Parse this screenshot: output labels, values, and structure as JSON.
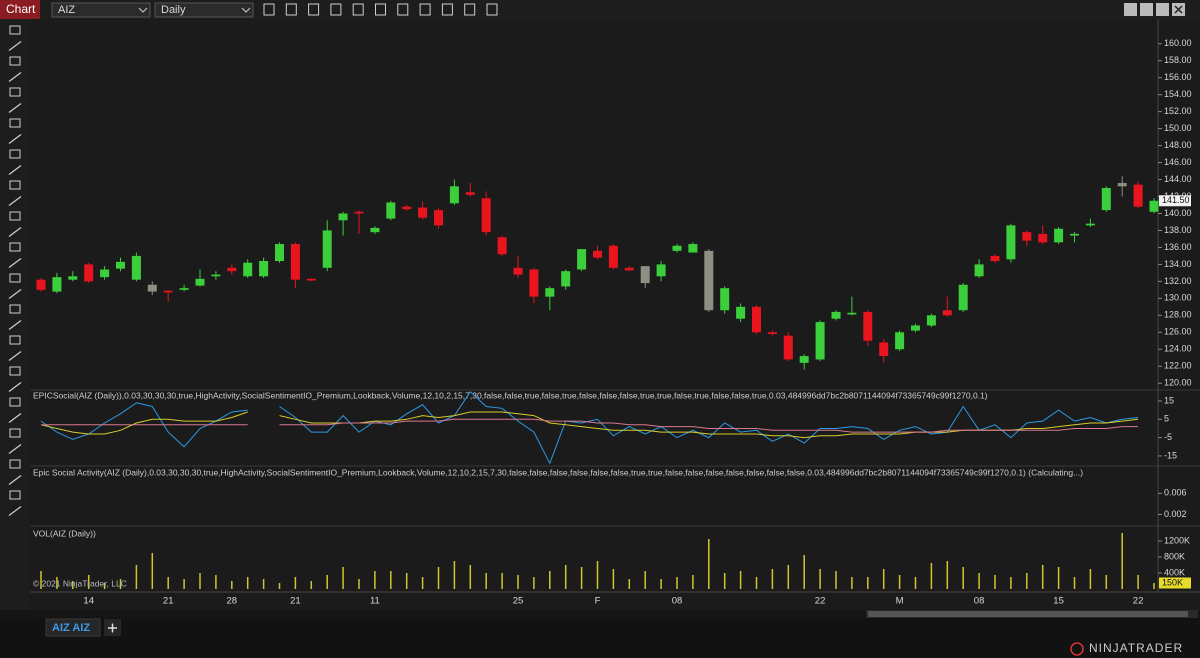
{
  "toolbar": {
    "title": "Chart",
    "instrument": "AIZ",
    "period": "Daily"
  },
  "chart_data": [
    {
      "type": "candlestick",
      "open": [
        132.2,
        130.8,
        132.2,
        134,
        132.5,
        133.5,
        132.2,
        131.6,
        130.9,
        131,
        131.5,
        132.6,
        133.6,
        132.6,
        132.6,
        134.4,
        136.4,
        132.3,
        133.6,
        139.2,
        140.2,
        137.8,
        139.4,
        140.8,
        140.7,
        140.4,
        141.2,
        142.5,
        141.8,
        137.2,
        133.6,
        133.4,
        130.2,
        131.4,
        133.4,
        135.6,
        136.2,
        133.6,
        133.8,
        132.6,
        135.6,
        135.4,
        135.6,
        128.6,
        127.6,
        129,
        126,
        125.6,
        122.4,
        122.8,
        127.6,
        128.1,
        128.4,
        124.8,
        124,
        126.2,
        126.8,
        128.6,
        128.6,
        132.6,
        135,
        134.6,
        137.8,
        137.6,
        136.6,
        137.4,
        138.6,
        140.4,
        143.6,
        143.4,
        140.2
      ],
      "high": [
        132.4,
        133,
        133.2,
        134.2,
        133.8,
        134.8,
        135.4,
        132,
        131,
        131.6,
        133.4,
        133.2,
        134,
        134.6,
        134.8,
        136.6,
        136.6,
        132.4,
        139.2,
        140.2,
        140.4,
        138.5,
        141.5,
        141,
        141.4,
        140.6,
        144,
        143.6,
        142.6,
        137.4,
        135,
        133.6,
        131.4,
        133.4,
        135.8,
        136.2,
        136.4,
        133.8,
        133.8,
        134.4,
        136.4,
        136.6,
        135.8,
        131.4,
        129.4,
        129.2,
        126.2,
        126,
        123.4,
        127.4,
        128.6,
        130.2,
        128.6,
        125.2,
        126.2,
        127,
        128.2,
        130.2,
        131.8,
        134.6,
        135.2,
        138.8,
        138,
        138.6,
        138.4,
        137.8,
        139.4,
        143.2,
        144.4,
        143.8,
        141.8
      ],
      "low": [
        130.8,
        130.6,
        132,
        131.8,
        132.2,
        133.2,
        132,
        130.4,
        129.6,
        130.8,
        131.4,
        132.2,
        132.8,
        132.4,
        132.4,
        134.2,
        131.2,
        132,
        133.2,
        137.4,
        137.6,
        137.6,
        139.2,
        140.3,
        139.3,
        138.2,
        141,
        142,
        137.4,
        135,
        132.4,
        129.4,
        128.6,
        131,
        133.2,
        134.6,
        133.4,
        133.2,
        131.2,
        132,
        135.4,
        135.4,
        128.4,
        128.2,
        127.2,
        125.8,
        125.6,
        122.6,
        121.6,
        122.6,
        127.4,
        128,
        124.4,
        122.4,
        123.8,
        126,
        126.6,
        127.8,
        128.4,
        132.4,
        134.2,
        134.2,
        136.2,
        136.4,
        136.4,
        136.6,
        138.4,
        140.2,
        142,
        140.6,
        140
      ],
      "close": [
        131,
        132.5,
        132.6,
        132,
        133.4,
        134.3,
        135,
        130.8,
        130.7,
        131.2,
        132.3,
        132.8,
        133.2,
        134.2,
        134.4,
        136.4,
        132.2,
        132.1,
        138,
        140,
        140,
        138.3,
        141.3,
        140.5,
        139.5,
        138.6,
        143.2,
        142.2,
        137.8,
        135.2,
        132.8,
        130.2,
        131.2,
        133.2,
        135.8,
        134.8,
        133.6,
        133.3,
        131.8,
        134,
        136.2,
        136.4,
        128.6,
        131.2,
        129,
        126,
        125.8,
        122.8,
        123.2,
        127.2,
        128.4,
        128.3,
        125,
        123.2,
        126,
        126.8,
        128,
        128,
        131.6,
        134,
        134.4,
        138.6,
        136.8,
        136.6,
        138.2,
        137.6,
        138.8,
        143,
        143.2,
        140.8,
        141.5
      ],
      "up_color": "#3ccf3c",
      "down_color": "#e8141e",
      "neutral_color": "#8e8e84",
      "neutral_bars": [
        7,
        38,
        42,
        68
      ],
      "ylim": [
        119.2,
        162.8
      ],
      "yticks": [
        {
          "value": 120,
          "label": "120.00"
        },
        {
          "value": 122,
          "label": "122.00"
        },
        {
          "value": 124,
          "label": "124.00"
        },
        {
          "value": 126,
          "label": "126.00"
        },
        {
          "value": 128,
          "label": "128.00"
        },
        {
          "value": 130,
          "label": "130.00"
        },
        {
          "value": 132,
          "label": "132.00"
        },
        {
          "value": 134,
          "label": "134.00"
        },
        {
          "value": 136,
          "label": "136.00"
        },
        {
          "value": 138,
          "label": "138.00"
        },
        {
          "value": 140,
          "label": "140.00"
        },
        {
          "value": 142,
          "label": "142.00"
        },
        {
          "value": 144,
          "label": "144.00"
        },
        {
          "value": 146,
          "label": "146.00"
        },
        {
          "value": 148,
          "label": "148.00"
        },
        {
          "value": 150,
          "label": "150.00"
        },
        {
          "value": 152,
          "label": "152.00"
        },
        {
          "value": 154,
          "label": "154.00"
        },
        {
          "value": 156,
          "label": "156.00"
        },
        {
          "value": 158,
          "label": "158.00"
        },
        {
          "value": 160,
          "label": "160.00"
        }
      ],
      "current": {
        "value": 141.5,
        "label": "141.50"
      }
    },
    {
      "type": "line",
      "title": "EPICSocial(AIZ (Daily)),0.03,30,30,30,true,HighActivity,SocialSentimentIO_Premium,Lookback,Volume,12,10,2,15,7,30,false,false,true,false,true,false,false,false,true,true,false,true,false,false,true,0.03,484996dd7bc2b8071144094f73365749c99f1270,0.1)",
      "ylim": [
        -20.5,
        21
      ],
      "yticks": [
        15,
        5,
        -5,
        -15
      ],
      "series": [
        {
          "color": "#2b9be8",
          "values": [
            4,
            -2,
            -6,
            -3,
            3,
            8,
            14,
            12,
            -2,
            -10,
            0,
            4,
            9,
            10,
            null,
            12,
            6,
            -2,
            -2,
            7,
            -2,
            4,
            2,
            8,
            13,
            3,
            7,
            20,
            12,
            11,
            4,
            -2,
            -19,
            4,
            3,
            5,
            -4,
            1,
            -3,
            1,
            -5,
            -1,
            -5,
            3,
            -2,
            -1,
            -7,
            -3,
            -8,
            0,
            0,
            1,
            0,
            -6,
            -1,
            1,
            -3,
            -2,
            12,
            -1,
            2,
            -5,
            3,
            4,
            10,
            4,
            6,
            3,
            5,
            6,
            null
          ]
        },
        {
          "color": "#d8cc2a",
          "values": [
            2,
            0,
            -2,
            -3,
            -3,
            -1,
            3,
            5,
            5,
            4,
            4,
            4,
            6,
            9,
            null,
            7,
            5,
            3,
            3,
            3,
            3,
            4,
            4,
            5,
            7,
            6,
            7,
            9,
            9,
            9,
            8,
            7,
            3,
            2,
            1,
            0,
            -1,
            -1,
            -1,
            -2,
            -2,
            -2,
            -3,
            -3,
            -3,
            -3,
            -4,
            -4,
            -5,
            -4,
            -4,
            -3,
            -3,
            -3,
            -3,
            -2,
            -2,
            -2,
            -1,
            -1,
            -1,
            -1,
            0,
            0,
            1,
            2,
            3,
            3,
            4,
            5,
            null
          ]
        },
        {
          "color": "#d9788e",
          "values": [
            2,
            2,
            2,
            2,
            2,
            2,
            2,
            2,
            2,
            2,
            2,
            2,
            2,
            2,
            null,
            2,
            2,
            2,
            2,
            3,
            3,
            3,
            3,
            4,
            4,
            4,
            5,
            5,
            5,
            5,
            5,
            5,
            4,
            4,
            4,
            3,
            3,
            2,
            2,
            1,
            1,
            1,
            0,
            0,
            0,
            0,
            -1,
            -1,
            -1,
            -1,
            -1,
            -2,
            -2,
            -2,
            -2,
            -2,
            -2,
            -1,
            -1,
            -1,
            -1,
            -1,
            -1,
            -1,
            -1,
            0,
            0,
            0,
            1,
            1,
            null
          ]
        }
      ]
    },
    {
      "type": "line",
      "title": "Epic Social Activity(AIZ (Daily),0.03,30,30,30,true,HighActivity,SocialSentimentIO_Premium,Lookback,Volume,12,10,2,15,7,30,false,false,false,false,false,false,true,true,false,false,false,false,false,false,false,0.03,484996dd7bc2b8071144094f73365749c99f1270,0.1) (Calculating...)",
      "ylim": [
        0,
        0.011
      ],
      "yticks": [
        0.006,
        0.002
      ]
    },
    {
      "type": "bar",
      "title": "VOL(AIZ (Daily))",
      "color": "#cfc62a",
      "categories": [
        null,
        null,
        null,
        "14",
        null,
        null,
        null,
        null,
        "21",
        null,
        null,
        null,
        "28",
        null,
        null,
        null,
        "21",
        null,
        null,
        null,
        null,
        "11",
        null,
        null,
        null,
        null,
        null,
        null,
        null,
        null,
        "25",
        null,
        null,
        null,
        null,
        "F",
        null,
        null,
        null,
        null,
        "08",
        null,
        null,
        null,
        null,
        null,
        null,
        null,
        null,
        "22",
        null,
        null,
        null,
        null,
        "M",
        null,
        null,
        null,
        null,
        "08",
        null,
        null,
        null,
        null,
        "15",
        null,
        null,
        null,
        null,
        "22",
        null
      ],
      "values": [
        450000,
        300000,
        200000,
        350000,
        150000,
        250000,
        600000,
        900000,
        300000,
        250000,
        400000,
        350000,
        200000,
        300000,
        250000,
        150000,
        300000,
        200000,
        350000,
        550000,
        250000,
        450000,
        450000,
        400000,
        300000,
        550000,
        700000,
        600000,
        400000,
        400000,
        350000,
        300000,
        450000,
        600000,
        550000,
        700000,
        500000,
        250000,
        450000,
        250000,
        300000,
        350000,
        1250000,
        400000,
        450000,
        300000,
        500000,
        600000,
        850000,
        500000,
        450000,
        300000,
        300000,
        500000,
        350000,
        300000,
        650000,
        700000,
        550000,
        400000,
        350000,
        300000,
        400000,
        600000,
        550000,
        300000,
        500000,
        350000,
        1400000,
        350000,
        150000
      ],
      "ylim": [
        0,
        1525000
      ],
      "yticks": [
        {
          "value": 1200000,
          "label": "1200K"
        },
        {
          "value": 800000,
          "label": "800K"
        },
        {
          "value": 400000,
          "label": "400K"
        }
      ],
      "current": {
        "value": 150000,
        "label": "150K"
      },
      "copyright": "© 2021 NinjaTrader, LLC"
    }
  ],
  "tabs": [
    "AIZ AIZ"
  ],
  "footer": {
    "logo": "NINJATRADER"
  }
}
